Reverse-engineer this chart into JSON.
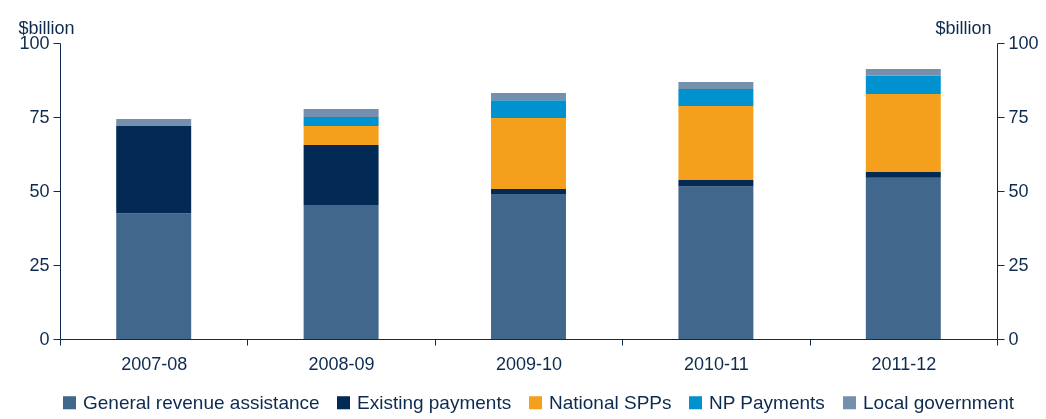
{
  "chart_data": {
    "type": "bar",
    "stacked": true,
    "categories": [
      "2007-08",
      "2008-09",
      "2009-10",
      "2010-11",
      "2011-12"
    ],
    "series": [
      {
        "name": "General revenue assistance",
        "color": "#42678c",
        "values": [
          42.5,
          45.3,
          49,
          51.5,
          54.5
        ]
      },
      {
        "name": "Existing payments",
        "color": "#022a54",
        "values": [
          29.5,
          20.2,
          1.7,
          2.2,
          1.9
        ]
      },
      {
        "name": "National SPPs",
        "color": "#f5a01c",
        "values": [
          null,
          6.5,
          24,
          25,
          26.4
        ]
      },
      {
        "name": "NP Payments",
        "color": "#0092cf",
        "values": [
          null,
          3,
          6,
          5.8,
          6.1
        ]
      },
      {
        "name": "Local government",
        "color": "#7590ad",
        "values": [
          2.3,
          2.7,
          2.4,
          2.3,
          2.3
        ]
      }
    ],
    "ylabel": "$billion",
    "y2label": "$billion",
    "ylim": [
      0,
      100
    ],
    "yticks": [
      0,
      25,
      50,
      75,
      100
    ],
    "y2lim": [
      0,
      100
    ],
    "y2ticks": [
      0,
      25,
      50,
      75,
      100
    ],
    "grid": false,
    "legend": "bottom"
  }
}
